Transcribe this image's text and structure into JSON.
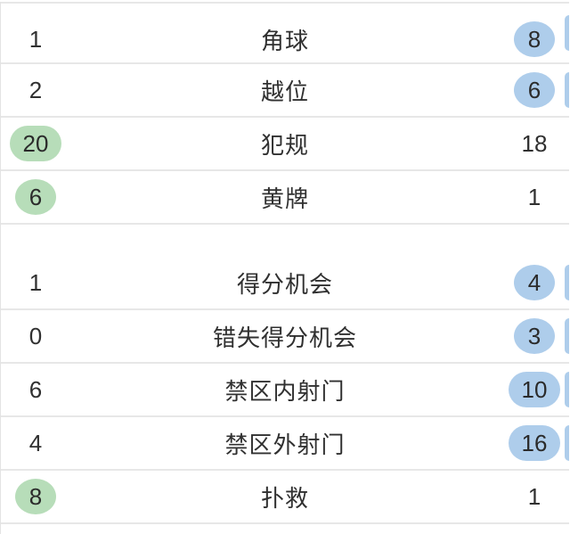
{
  "colors": {
    "background": "#ffffff",
    "home_badge": "#b7ddb9",
    "away_badge": "#aecdeb",
    "divider": "#e7e7e7",
    "text": "#303030"
  },
  "stats_table": {
    "sections": [
      {
        "name": "set-pieces-discipline",
        "rows": [
          {
            "home": "1",
            "label": "角球",
            "away": "8",
            "home_leading": false,
            "away_leading": true
          },
          {
            "home": "2",
            "label": "越位",
            "away": "6",
            "home_leading": false,
            "away_leading": true
          },
          {
            "home": "20",
            "label": "犯规",
            "away": "18",
            "home_leading": true,
            "away_leading": false
          },
          {
            "home": "6",
            "label": "黄牌",
            "away": "1",
            "home_leading": true,
            "away_leading": false
          }
        ]
      },
      {
        "name": "chances-shots",
        "rows": [
          {
            "home": "1",
            "label": "得分机会",
            "away": "4",
            "home_leading": false,
            "away_leading": true
          },
          {
            "home": "0",
            "label": "错失得分机会",
            "away": "3",
            "home_leading": false,
            "away_leading": true
          },
          {
            "home": "6",
            "label": "禁区内射门",
            "away": "10",
            "home_leading": false,
            "away_leading": true
          },
          {
            "home": "4",
            "label": "禁区外射门",
            "away": "16",
            "home_leading": false,
            "away_leading": true
          },
          {
            "home": "8",
            "label": "扑救",
            "away": "1",
            "home_leading": true,
            "away_leading": false
          }
        ]
      }
    ]
  }
}
